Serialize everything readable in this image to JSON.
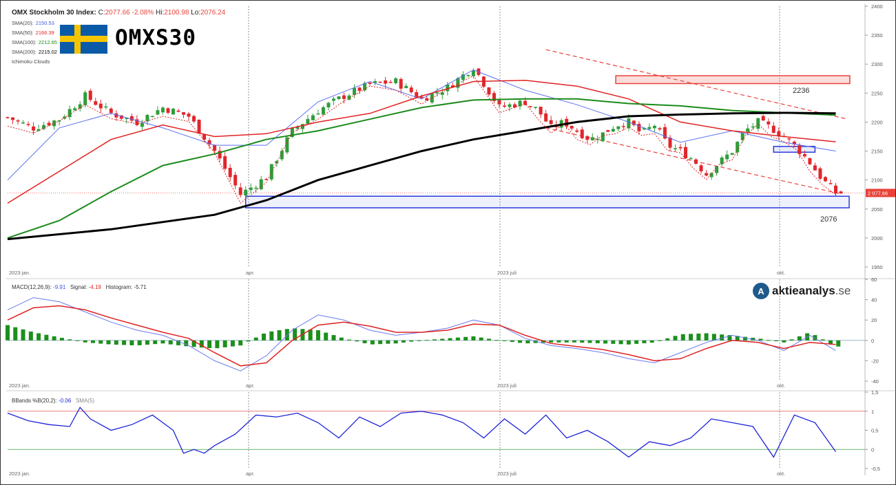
{
  "header": {
    "name": "OMX Stockholm 30 Index:",
    "c_label": "C:",
    "c_value": "2077.66",
    "change": "-2.08%",
    "hi_label": "Hi:",
    "hi_value": "2100.98",
    "lo_label": "Lo:",
    "lo_value": "2076.24"
  },
  "indicators": [
    {
      "label": "SMA(20):",
      "value": "2150.53",
      "color": "#3a56e8"
    },
    {
      "label": "SMA(50):",
      "value": "2166.39",
      "color": "#e02020"
    },
    {
      "label": "SMA(100):",
      "value": "2212.65",
      "color": "#1a8a1a"
    },
    {
      "label": "SMA(200):",
      "value": "2215.02",
      "color": "#000000"
    },
    {
      "label": "Ichimoku Clouds",
      "value": "",
      "color": "#888888"
    }
  ],
  "brand": {
    "title": "OMXS30",
    "logo_text": "aktieanalys",
    "logo_suffix": ".se",
    "logo_mark": "A"
  },
  "macd_legend": {
    "label": "MACD(12,26,9):",
    "value": "-9.91",
    "signal_label": "Signal:",
    "signal_value": "-4.19",
    "hist_label": "Histogram:",
    "hist_value": "-5.71"
  },
  "bb_legend": {
    "label": "BBands %B(20,2):",
    "value": "-0.06",
    "sma_label": "SMA(5)"
  },
  "colors": {
    "up": "#2e9d3a",
    "down": "#e0272c",
    "sma20": "#5a6ef0",
    "sma50": "#e02020",
    "sma100": "#1a8a1a",
    "sma200": "#000000",
    "zone_red": "#e8423a",
    "zone_blue": "#2a3ad8",
    "macd": "#6a78f0",
    "signal": "#e02020",
    "bb": "#1a22d8"
  },
  "chart_data": [
    {
      "type": "candlestick",
      "title": "OMX Stockholm 30 Index",
      "x_ticks": [
        "2023 jan.",
        "apr.",
        "2023 juli",
        "okt."
      ],
      "ylim": [
        1950,
        2400
      ],
      "y_ticks": [
        "1950",
        "2000",
        "2050",
        "2100",
        "2150",
        "2200",
        "2250",
        "2300",
        "2350",
        "2400"
      ],
      "last_price_label": "2 077,66",
      "annotations": [
        {
          "text": "2236",
          "kind": "resistance",
          "level": 2270
        },
        {
          "text": "2076",
          "kind": "support",
          "level": 2062
        }
      ],
      "series": [
        {
          "name": "close",
          "x": [
            0,
            10,
            20,
            30,
            40,
            50,
            60,
            70,
            80,
            90,
            100,
            110,
            120,
            130,
            140,
            150,
            160,
            170,
            180,
            190,
            200
          ],
          "values": [
            2208,
            2190,
            2205,
            2245,
            2215,
            2200,
            2225,
            2210,
            2150,
            2075,
            2105,
            2185,
            2220,
            2245,
            2265,
            2270,
            2240,
            2260,
            2295,
            2225,
            2235
          ]
        },
        {
          "name": "close (cont.)",
          "x": [
            205,
            210,
            215,
            220,
            225,
            230,
            235,
            240,
            245,
            250,
            255,
            260,
            265,
            270,
            275,
            280,
            285,
            290,
            295,
            300,
            305,
            310,
            315,
            320
          ],
          "values": [
            2220,
            2190,
            2200,
            2185,
            2170,
            2180,
            2195,
            2200,
            2180,
            2195,
            2160,
            2150,
            2135,
            2110,
            2130,
            2150,
            2185,
            2200,
            2190,
            2175,
            2155,
            2130,
            2100,
            2078
          ]
        },
        {
          "name": "SMA(20)",
          "x": [
            0,
            20,
            40,
            60,
            80,
            100,
            120,
            140,
            160,
            180,
            200,
            220,
            240,
            260,
            280,
            300,
            320
          ],
          "values": [
            2100,
            2190,
            2215,
            2190,
            2160,
            2160,
            2235,
            2270,
            2240,
            2290,
            2255,
            2230,
            2200,
            2165,
            2185,
            2165,
            2150
          ]
        },
        {
          "name": "SMA(50)",
          "x": [
            0,
            20,
            40,
            60,
            80,
            100,
            120,
            140,
            160,
            180,
            200,
            220,
            240,
            260,
            280,
            300,
            320
          ],
          "values": [
            2060,
            2115,
            2170,
            2195,
            2175,
            2180,
            2200,
            2215,
            2245,
            2270,
            2272,
            2262,
            2240,
            2200,
            2185,
            2175,
            2166
          ]
        },
        {
          "name": "SMA(100)",
          "x": [
            0,
            20,
            40,
            60,
            80,
            100,
            120,
            140,
            160,
            180,
            200,
            220,
            240,
            260,
            280,
            300,
            320
          ],
          "values": [
            2000,
            2030,
            2080,
            2125,
            2145,
            2170,
            2185,
            2205,
            2225,
            2238,
            2240,
            2240,
            2232,
            2228,
            2220,
            2216,
            2212
          ]
        },
        {
          "name": "SMA(200)",
          "x": [
            0,
            40,
            80,
            100,
            120,
            140,
            160,
            180,
            200,
            220,
            240,
            260,
            280,
            300,
            320
          ],
          "values": [
            1998,
            2015,
            2040,
            2065,
            2100,
            2125,
            2150,
            2170,
            2185,
            2200,
            2210,
            2213,
            2215,
            2216,
            2215
          ]
        }
      ]
    },
    {
      "type": "line",
      "title": "MACD(12,26,9)",
      "ylim": [
        -40,
        60
      ],
      "y_ticks": [
        "-40",
        "-20",
        "0",
        "20",
        "40",
        "60"
      ],
      "series": [
        {
          "name": "MACD",
          "x": [
            0,
            10,
            20,
            30,
            40,
            50,
            60,
            70,
            80,
            90,
            100,
            110,
            120,
            130,
            140,
            150,
            160,
            170,
            180,
            190,
            200,
            210,
            220,
            230,
            240,
            250,
            260,
            270,
            280,
            290,
            300,
            310,
            320
          ],
          "values": [
            30,
            42,
            38,
            28,
            18,
            10,
            5,
            -5,
            -20,
            -30,
            -15,
            10,
            25,
            20,
            10,
            5,
            8,
            12,
            20,
            15,
            2,
            -5,
            -8,
            -12,
            -18,
            -22,
            -12,
            -2,
            5,
            0,
            -10,
            5,
            -10
          ]
        },
        {
          "name": "Signal",
          "x": [
            0,
            10,
            20,
            30,
            40,
            50,
            60,
            70,
            80,
            90,
            100,
            110,
            120,
            130,
            140,
            150,
            160,
            170,
            180,
            190,
            200,
            210,
            220,
            230,
            240,
            250,
            260,
            270,
            280,
            290,
            300,
            310,
            320
          ],
          "values": [
            20,
            32,
            34,
            30,
            22,
            15,
            8,
            2,
            -12,
            -25,
            -22,
            0,
            15,
            18,
            14,
            8,
            8,
            10,
            16,
            15,
            5,
            -3,
            -6,
            -9,
            -14,
            -20,
            -18,
            -8,
            0,
            -2,
            -8,
            -2,
            -4
          ]
        },
        {
          "name": "Histogram",
          "x": [
            0,
            10,
            20,
            30,
            40,
            50,
            60,
            70,
            80,
            90,
            100,
            110,
            120,
            130,
            140,
            150,
            160,
            170,
            180,
            190,
            200,
            210,
            220,
            230,
            240,
            250,
            260,
            270,
            280,
            290,
            300,
            310,
            320
          ],
          "values": [
            15,
            8,
            3,
            -2,
            -4,
            -5,
            -3,
            -6,
            -8,
            -5,
            8,
            12,
            10,
            2,
            -4,
            -3,
            0,
            2,
            4,
            0,
            -3,
            -2,
            -2,
            -3,
            -4,
            -2,
            6,
            7,
            5,
            2,
            -2,
            8,
            -6
          ]
        }
      ]
    },
    {
      "type": "line",
      "title": "BBands %B(20,2)",
      "ylim": [
        -0.5,
        1.5
      ],
      "y_ticks": [
        "-0,5",
        "0",
        "0,5",
        "1",
        "1,5"
      ],
      "reference_lines": [
        1,
        0
      ],
      "series": [
        {
          "name": "%B",
          "x": [
            0,
            8,
            16,
            24,
            28,
            32,
            40,
            48,
            56,
            64,
            68,
            72,
            76,
            80,
            88,
            96,
            104,
            112,
            120,
            128,
            136,
            144,
            152,
            160,
            168,
            176,
            184,
            192,
            200,
            208,
            216,
            224,
            232,
            240,
            248,
            256,
            264,
            272,
            280,
            288,
            296,
            304,
            312,
            320
          ],
          "values": [
            0.95,
            0.75,
            0.65,
            0.6,
            1.1,
            0.8,
            0.5,
            0.65,
            0.9,
            0.5,
            -0.1,
            0.0,
            -0.1,
            0.1,
            0.4,
            0.9,
            0.85,
            0.95,
            0.7,
            0.3,
            0.85,
            0.6,
            0.95,
            1.0,
            0.9,
            0.7,
            0.3,
            0.8,
            0.4,
            0.9,
            0.3,
            0.5,
            0.2,
            -0.2,
            0.2,
            0.1,
            0.3,
            0.8,
            0.7,
            0.6,
            -0.2,
            0.9,
            0.7,
            -0.06
          ]
        }
      ]
    }
  ]
}
